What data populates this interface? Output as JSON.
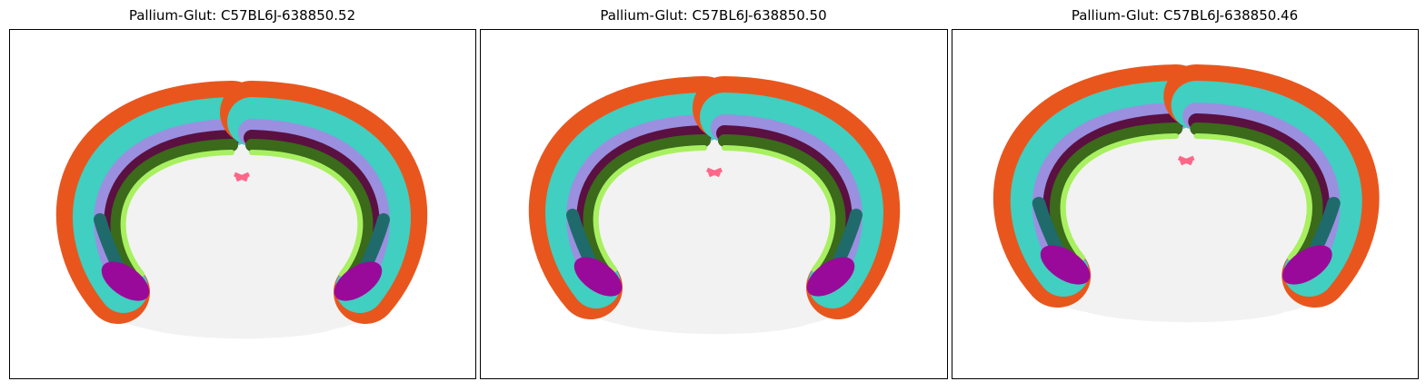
{
  "panels": [
    {
      "title": "Pallium-Glut: C57BL6J-638850.52"
    },
    {
      "title": "Pallium-Glut: C57BL6J-638850.50"
    },
    {
      "title": "Pallium-Glut: C57BL6J-638850.46"
    }
  ]
}
